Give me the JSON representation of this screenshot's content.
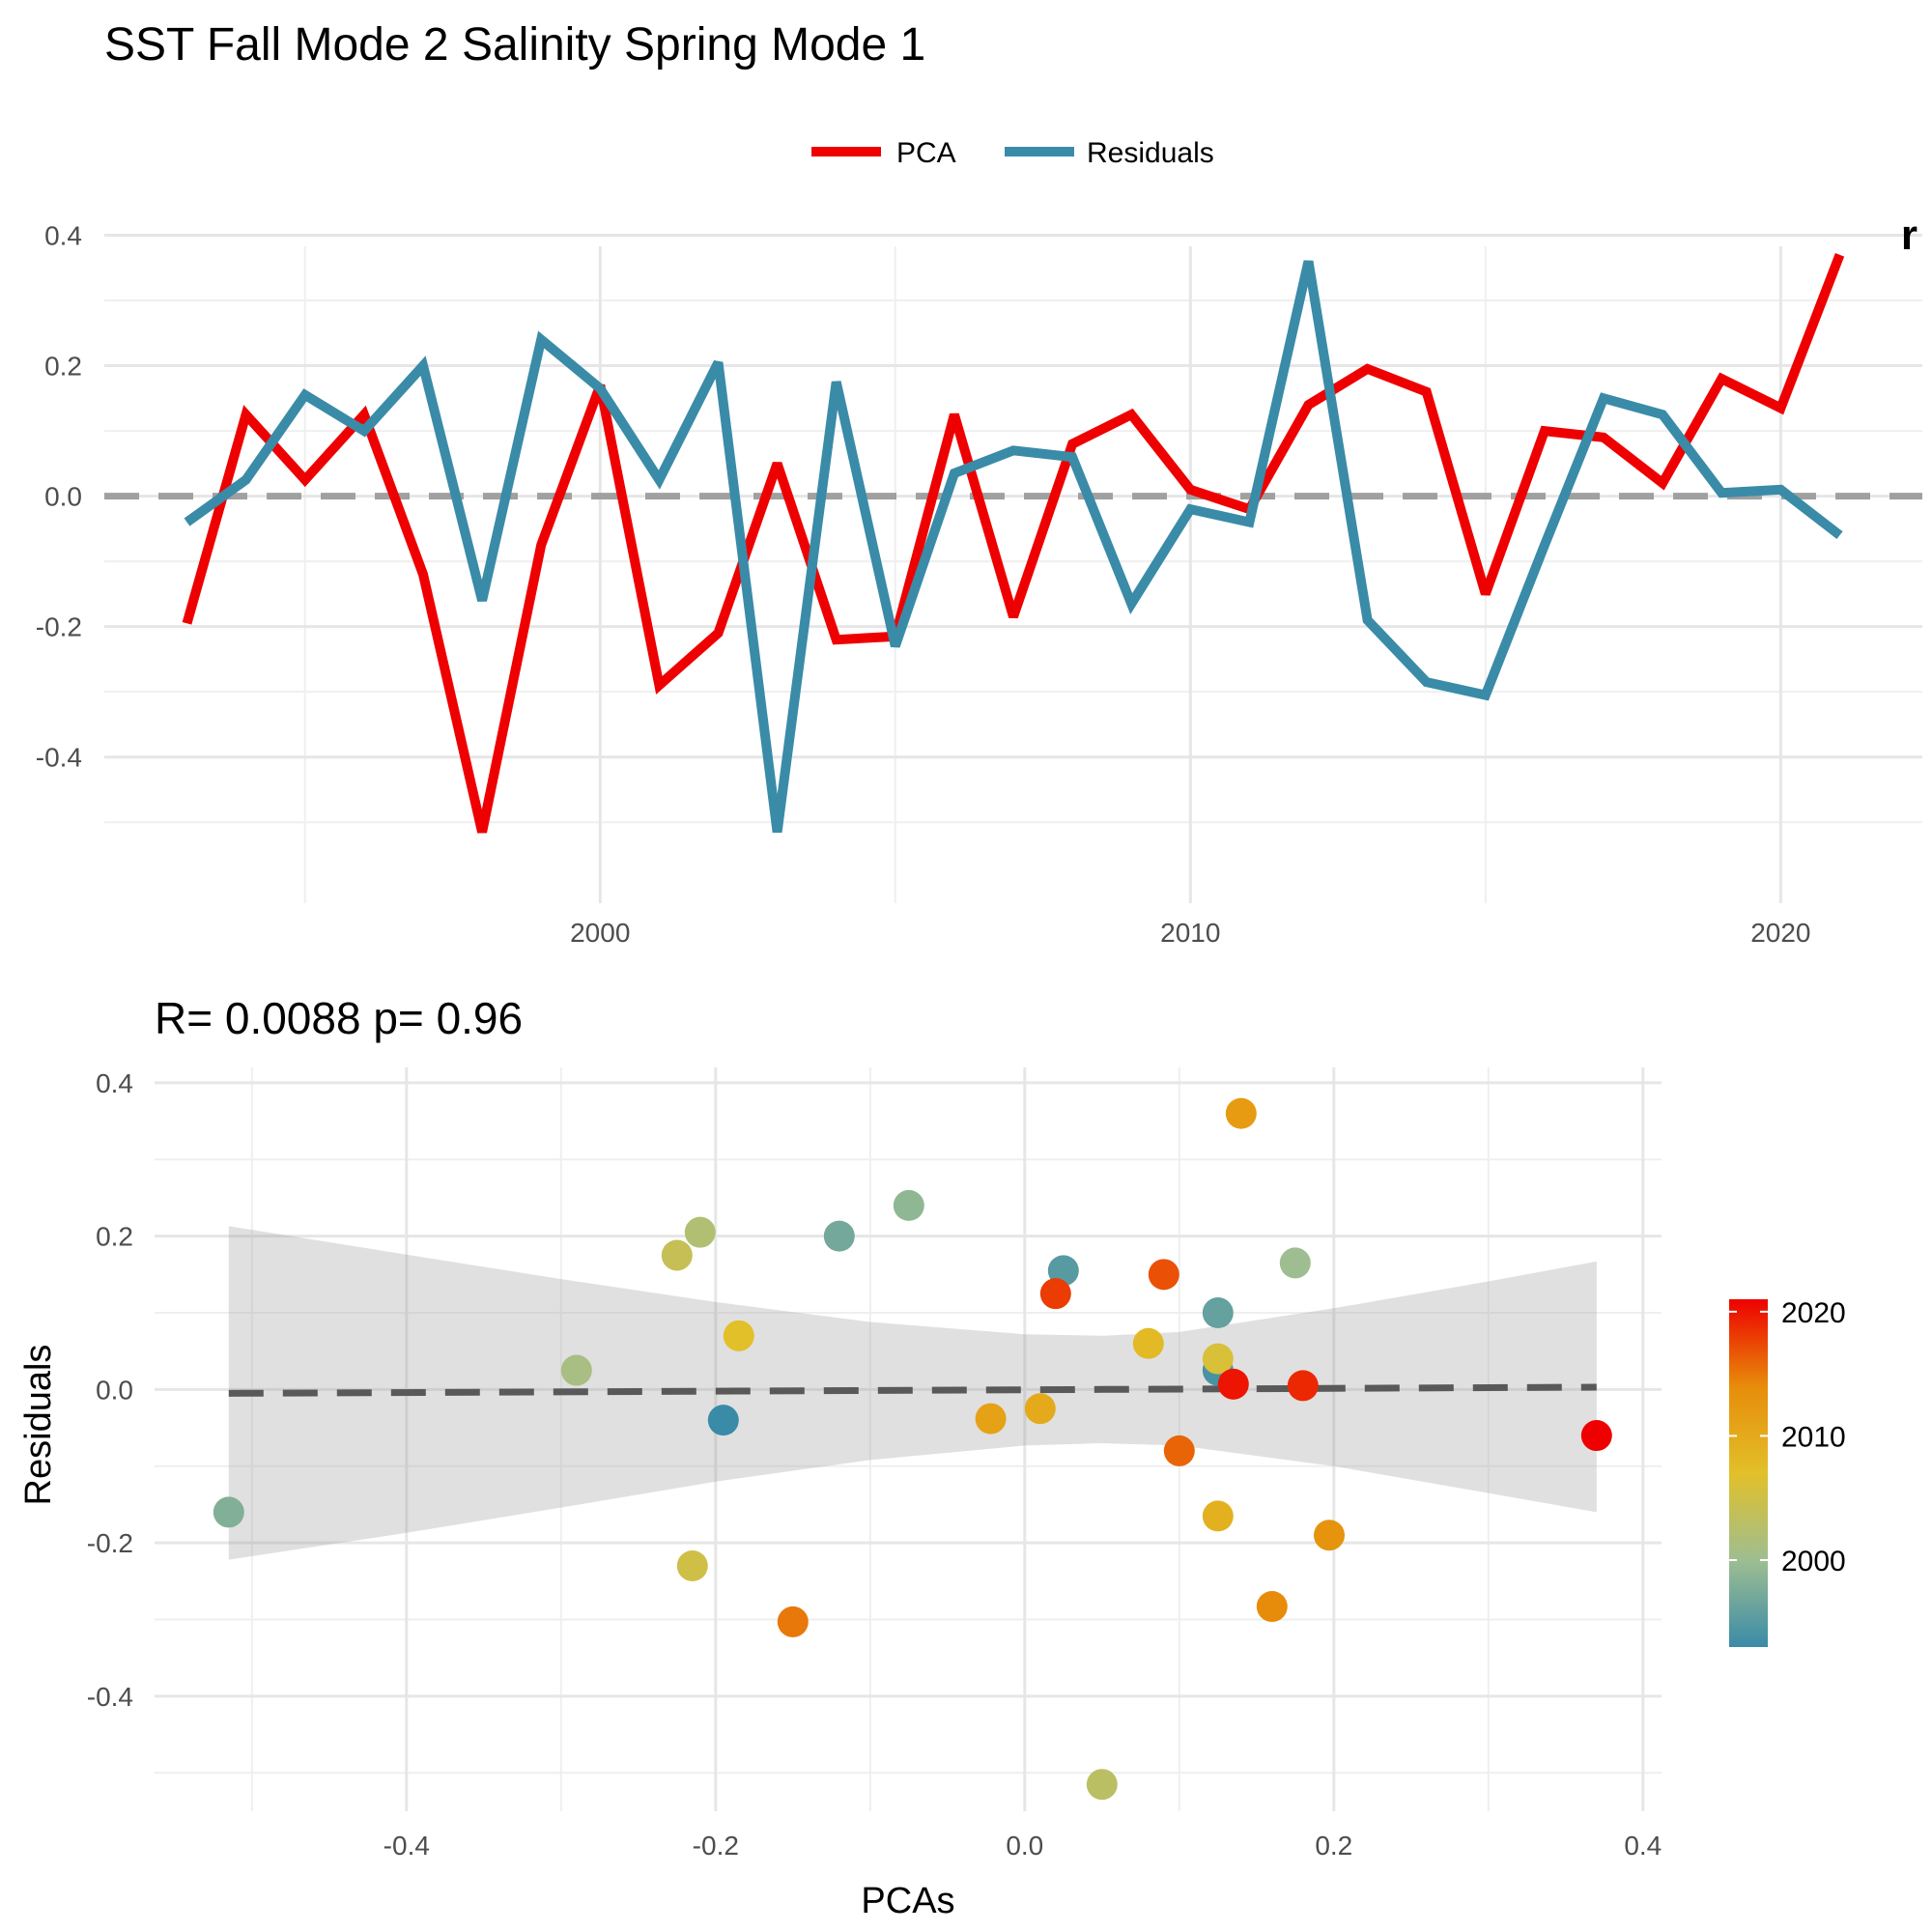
{
  "title": "SST Fall Mode 2 Salinity Spring Mode 1",
  "legend": {
    "items": [
      {
        "label": "PCA",
        "color": "#ee0000"
      },
      {
        "label": "Residuals",
        "color": "#3a8ba8"
      }
    ]
  },
  "chart_data": [
    {
      "type": "line",
      "title": "",
      "xlabel": "",
      "ylabel": "",
      "xlim": [
        1991.6,
        2022.4
      ],
      "ylim": [
        -0.55,
        0.42
      ],
      "x_ticks": [
        2000,
        2010,
        2020
      ],
      "y_ticks": [
        -0.4,
        -0.2,
        0.0,
        0.2,
        0.4
      ],
      "y_tick_labels": [
        "-0.4",
        "-0.2",
        "0.0",
        "0.2",
        "0.4"
      ],
      "reference_line": {
        "y": 0,
        "style": "dashed",
        "color": "#a0a0a0"
      },
      "grid": true,
      "legend_position": "top",
      "x": [
        1993,
        1994,
        1995,
        1996,
        1997,
        1998,
        1999,
        2000,
        2001,
        2002,
        2003,
        2004,
        2005,
        2006,
        2007,
        2008,
        2009,
        2010,
        2011,
        2012,
        2013,
        2014,
        2015,
        2016,
        2017,
        2018,
        2019,
        2020,
        2021
      ],
      "series": [
        {
          "name": "PCA",
          "color": "#ee0000",
          "values": [
            -0.195,
            0.125,
            0.025,
            0.125,
            -0.12,
            -0.515,
            -0.075,
            0.17,
            -0.29,
            -0.21,
            0.05,
            -0.22,
            -0.215,
            0.125,
            -0.185,
            0.08,
            0.125,
            0.01,
            -0.02,
            0.14,
            0.195,
            0.16,
            -0.15,
            0.1,
            0.09,
            0.02,
            0.18,
            0.135,
            0.37
          ]
        },
        {
          "name": "Residuals",
          "color": "#3a8ba8",
          "values": [
            -0.04,
            0.025,
            0.155,
            0.1,
            0.2,
            -0.16,
            0.24,
            0.165,
            0.025,
            0.205,
            -0.515,
            0.175,
            -0.23,
            0.035,
            0.07,
            0.06,
            -0.165,
            -0.02,
            -0.04,
            0.36,
            -0.19,
            -0.285,
            -0.305,
            -0.075,
            0.15,
            0.125,
            0.005,
            0.01,
            -0.06
          ]
        }
      ],
      "annotation": "r"
    },
    {
      "type": "scatter",
      "title": "R= 0.0088  p= 0.96",
      "xlabel": "PCAs",
      "ylabel": "Residuals",
      "xlim": [
        -0.563,
        0.412
      ],
      "ylim": [
        -0.55,
        0.42
      ],
      "x_ticks": [
        -0.4,
        -0.2,
        0.0,
        0.2,
        0.4
      ],
      "x_tick_labels": [
        "-0.4",
        "-0.2",
        "0.0",
        "0.2",
        "0.4"
      ],
      "y_ticks": [
        -0.4,
        -0.2,
        0.0,
        0.2,
        0.4
      ],
      "y_tick_labels": [
        "-0.4",
        "-0.2",
        "0.0",
        "0.2",
        "0.4"
      ],
      "grid": true,
      "fit_line": {
        "x": [
          -0.515,
          0.37
        ],
        "y": [
          -0.005,
          0.003
        ],
        "style": "dashed",
        "color": "#595959"
      },
      "confidence_band": {
        "x": [
          -0.515,
          -0.4,
          -0.3,
          -0.2,
          -0.1,
          0.0,
          0.05,
          0.1,
          0.2,
          0.3,
          0.37
        ],
        "upper": [
          0.213,
          0.176,
          0.144,
          0.114,
          0.088,
          0.072,
          0.07,
          0.075,
          0.106,
          0.141,
          0.167
        ],
        "lower": [
          -0.222,
          -0.187,
          -0.154,
          -0.12,
          -0.092,
          -0.073,
          -0.07,
          -0.073,
          -0.1,
          -0.135,
          -0.16
        ]
      },
      "colorbar": {
        "title": "",
        "ticks": [
          2000,
          2010,
          2020
        ],
        "range": [
          1993,
          2021
        ],
        "colors": [
          "#3a8ba8",
          "#9ebe91",
          "#e2c029",
          "#e78c0a",
          "#ee0000"
        ],
        "position": "right"
      },
      "points": [
        {
          "x": -0.195,
          "y": -0.04,
          "year": 1993
        },
        {
          "x": 0.125,
          "y": 0.025,
          "year": 1994
        },
        {
          "x": 0.025,
          "y": 0.155,
          "year": 1995
        },
        {
          "x": 0.125,
          "y": 0.1,
          "year": 1996
        },
        {
          "x": -0.12,
          "y": 0.2,
          "year": 1997
        },
        {
          "x": -0.515,
          "y": -0.16,
          "year": 1998
        },
        {
          "x": -0.075,
          "y": 0.24,
          "year": 1999
        },
        {
          "x": 0.175,
          "y": 0.165,
          "year": 2000
        },
        {
          "x": -0.29,
          "y": 0.025,
          "year": 2001
        },
        {
          "x": -0.21,
          "y": 0.205,
          "year": 2002
        },
        {
          "x": 0.05,
          "y": -0.515,
          "year": 2003
        },
        {
          "x": -0.225,
          "y": 0.175,
          "year": 2004
        },
        {
          "x": -0.215,
          "y": -0.23,
          "year": 2005
        },
        {
          "x": 0.125,
          "y": 0.04,
          "year": 2006
        },
        {
          "x": -0.185,
          "y": 0.07,
          "year": 2007
        },
        {
          "x": 0.08,
          "y": 0.06,
          "year": 2008
        },
        {
          "x": 0.125,
          "y": -0.165,
          "year": 2009
        },
        {
          "x": 0.01,
          "y": -0.025,
          "year": 2010
        },
        {
          "x": -0.022,
          "y": -0.038,
          "year": 2011
        },
        {
          "x": 0.14,
          "y": 0.36,
          "year": 2012
        },
        {
          "x": 0.197,
          "y": -0.19,
          "year": 2013
        },
        {
          "x": 0.16,
          "y": -0.283,
          "year": 2014
        },
        {
          "x": -0.15,
          "y": -0.303,
          "year": 2015
        },
        {
          "x": 0.1,
          "y": -0.08,
          "year": 2016
        },
        {
          "x": 0.09,
          "y": 0.15,
          "year": 2017
        },
        {
          "x": 0.02,
          "y": 0.125,
          "year": 2018
        },
        {
          "x": 0.18,
          "y": 0.005,
          "year": 2019
        },
        {
          "x": 0.135,
          "y": 0.007,
          "year": 2020
        },
        {
          "x": 0.37,
          "y": -0.06,
          "year": 2021
        }
      ]
    }
  ]
}
